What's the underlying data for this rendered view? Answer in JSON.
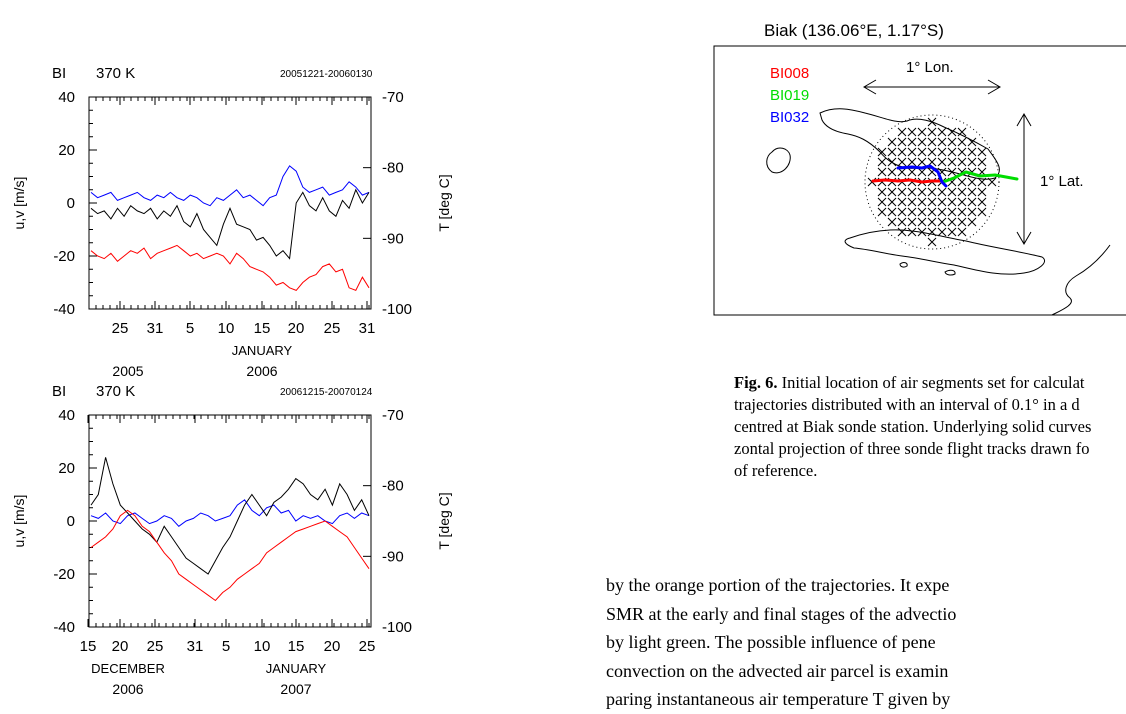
{
  "chart_data": [
    {
      "type": "line",
      "station": "BI",
      "level": "370 K",
      "period": "20051221-20060130",
      "ylabel_left": "u,v [m/s]",
      "ylabel_right": "T [deg C]",
      "ylim_left": [
        -40,
        40
      ],
      "ylim_right": [
        -100,
        -70
      ],
      "yticks_left": [
        -40,
        -20,
        0,
        20,
        40
      ],
      "yticks_right": [
        -70,
        -80,
        -90,
        -100
      ],
      "x_tick_labels": [
        "25",
        "31",
        "5",
        "10",
        "15",
        "20",
        "25",
        "31"
      ],
      "month_labels": [
        "JANUARY"
      ],
      "year_labels": [
        "2005",
        "2006"
      ],
      "series": [
        {
          "color": "#0000ff",
          "values": [
            4,
            2,
            3,
            4,
            1,
            2,
            3,
            4,
            2,
            1,
            3,
            2,
            4,
            2,
            1,
            3,
            2,
            0,
            -1,
            2,
            1,
            3,
            5,
            2,
            3,
            1,
            -1,
            2,
            3,
            10,
            14,
            12,
            6,
            4,
            5,
            6,
            3,
            4,
            5,
            8,
            6,
            3,
            4
          ]
        },
        {
          "color": "#000000",
          "values": [
            -2,
            -4,
            -3,
            -6,
            -2,
            -5,
            -1,
            -3,
            -4,
            -2,
            -6,
            -3,
            -5,
            -1,
            -7,
            -9,
            -4,
            -10,
            -13,
            -16,
            -8,
            -2,
            -8,
            -9,
            -10,
            -14,
            -13,
            -16,
            -20,
            -18,
            -21,
            0,
            4,
            -1,
            -3,
            2,
            -3,
            -5,
            1,
            -2,
            5,
            0,
            4
          ]
        },
        {
          "color": "#ff0000",
          "values": [
            -18,
            -20,
            -21,
            -19,
            -22,
            -20,
            -18,
            -19,
            -17,
            -21,
            -19,
            -18,
            -17,
            -16,
            -18,
            -20,
            -19,
            -21,
            -20,
            -19,
            -20,
            -23,
            -19,
            -21,
            -24,
            -25,
            -26,
            -28,
            -31,
            -30,
            -32,
            -33,
            -30,
            -28,
            -27,
            -24,
            -23,
            -26,
            -25,
            -32,
            -33,
            -28,
            -32
          ]
        }
      ]
    },
    {
      "type": "line",
      "station": "BI",
      "level": "370 K",
      "period": "20061215-20070124",
      "ylabel_left": "u,v [m/s]",
      "ylabel_right": "T [deg C]",
      "ylim_left": [
        -40,
        40
      ],
      "ylim_right": [
        -100,
        -70
      ],
      "yticks_left": [
        -40,
        -20,
        0,
        20,
        40
      ],
      "yticks_right": [
        -70,
        -80,
        -90,
        -100
      ],
      "x_tick_labels": [
        "15",
        "20",
        "25",
        "31",
        "5",
        "10",
        "15",
        "20",
        "25"
      ],
      "month_labels": [
        "DECEMBER",
        "JANUARY"
      ],
      "year_labels": [
        "2006",
        "2007"
      ],
      "series": [
        {
          "color": "#0000ff",
          "values": [
            2,
            1,
            3,
            0,
            -1,
            2,
            3,
            1,
            -1,
            0,
            2,
            1,
            -2,
            0,
            1,
            3,
            2,
            0,
            1,
            2,
            6,
            8,
            4,
            2,
            5,
            6,
            3,
            4,
            0,
            2,
            1,
            2,
            0,
            -1,
            2,
            3,
            1,
            3,
            2
          ]
        },
        {
          "color": "#000000",
          "values": [
            6,
            10,
            24,
            14,
            6,
            3,
            0,
            -3,
            -5,
            -8,
            -2,
            -6,
            -10,
            -14,
            -16,
            -18,
            -20,
            -15,
            -10,
            -6,
            0,
            6,
            10,
            6,
            2,
            7,
            9,
            12,
            16,
            14,
            10,
            8,
            12,
            6,
            14,
            10,
            4,
            8,
            2
          ]
        },
        {
          "color": "#ff0000",
          "values": [
            -10,
            -8,
            -6,
            -3,
            2,
            4,
            2,
            -2,
            -4,
            -8,
            -12,
            -15,
            -20,
            -22,
            -24,
            -26,
            -28,
            -30,
            -27,
            -25,
            -22,
            -20,
            -18,
            -16,
            -12,
            -10,
            -8,
            -6,
            -4,
            -3,
            -2,
            -1,
            0,
            -2,
            -4,
            -6,
            -10,
            -14,
            -18
          ]
        }
      ]
    }
  ],
  "map": {
    "title": "Biak (136.06°E, 1.17°S)",
    "legend": [
      {
        "label": "BI008",
        "color": "#ff0000"
      },
      {
        "label": "BI019",
        "color": "#00dd00"
      },
      {
        "label": "BI032",
        "color": "#0000ff"
      }
    ],
    "lon_label": "1° Lon.",
    "lat_label": "1° Lat."
  },
  "caption": {
    "fig_label": "Fig. 6.",
    "lines": [
      "Initial location of air segments set for calculat",
      "trajectories distributed with an interval of 0.1° in a d",
      "centred at Biak sonde station. Underlying solid curves",
      "zontal projection of three sonde flight tracks drawn fo",
      "of reference."
    ]
  },
  "body_text": {
    "lines": [
      "by the orange portion of the trajectories. It expe",
      "SMR at the early and final stages of the advectio",
      "by light green. The possible influence of pene",
      "convection on the advected air parcel is examin",
      "paring instantaneous air temperature T given by"
    ]
  }
}
